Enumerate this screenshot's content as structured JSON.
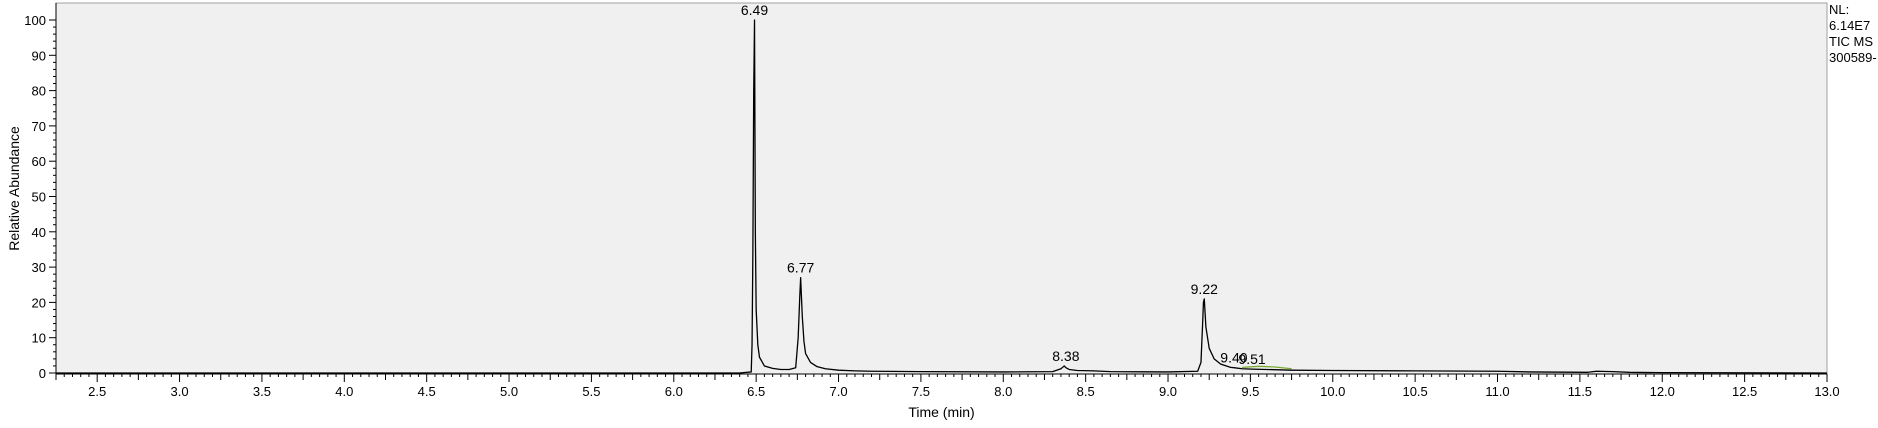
{
  "chart_data": {
    "type": "line",
    "title": "",
    "xlabel": "Time (min)",
    "ylabel": "Relative Abundance",
    "xlim": [
      2.25,
      13.0
    ],
    "ylim": [
      0,
      100
    ],
    "x_ticks": [
      2.5,
      3.0,
      3.5,
      4.0,
      4.5,
      5.0,
      5.5,
      6.0,
      6.5,
      7.0,
      7.5,
      8.0,
      8.5,
      9.0,
      9.5,
      10.0,
      10.5,
      11.0,
      11.5,
      12.0,
      12.5,
      13.0
    ],
    "x_tick_labels": [
      "2.5",
      "3.0",
      "3.5",
      "4.0",
      "4.5",
      "5.0",
      "5.5",
      "6.0",
      "6.5",
      "7.0",
      "7.5",
      "8.0",
      "8.5",
      "9.0",
      "9.5",
      "10.0",
      "10.5",
      "11.0",
      "11.5",
      "12.0",
      "12.5",
      "13.0"
    ],
    "y_ticks": [
      0,
      10,
      20,
      30,
      40,
      50,
      60,
      70,
      80,
      90,
      100
    ],
    "y_tick_labels": [
      "0",
      "10",
      "20",
      "30",
      "40",
      "50",
      "60",
      "70",
      "80",
      "90",
      "100"
    ],
    "grid": false,
    "series": [
      {
        "color": "#000000",
        "x": [
          2.25,
          6.4,
          6.47,
          6.475,
          6.48,
          6.485,
          6.49,
          6.495,
          6.5,
          6.51,
          6.52,
          6.55,
          6.6,
          6.65,
          6.7,
          6.74,
          6.755,
          6.765,
          6.77,
          6.78,
          6.79,
          6.8,
          6.83,
          6.87,
          6.92,
          7.0,
          7.1,
          7.2,
          7.5,
          8.0,
          8.3,
          8.35,
          8.37,
          8.38,
          8.4,
          8.45,
          8.55,
          8.65,
          9.0,
          9.18,
          9.2,
          9.21,
          9.215,
          9.22,
          9.23,
          9.25,
          9.28,
          9.32,
          9.38,
          9.4,
          9.45,
          9.51,
          9.6,
          9.75,
          10.0,
          10.5,
          11.0,
          11.2,
          11.55,
          11.6,
          11.7,
          11.8,
          12.0,
          13.0
        ],
        "values": [
          0.0,
          0.0,
          0.3,
          8.0,
          34.0,
          79.0,
          100.0,
          40.0,
          18.0,
          8.0,
          4.5,
          2.0,
          1.3,
          1.0,
          1.0,
          1.5,
          10.0,
          22.0,
          27.0,
          16.0,
          9.0,
          5.5,
          3.0,
          1.8,
          1.2,
          0.8,
          0.6,
          0.5,
          0.4,
          0.3,
          0.4,
          1.2,
          2.0,
          1.5,
          1.0,
          0.7,
          0.6,
          0.4,
          0.3,
          0.5,
          3.0,
          14.0,
          20.0,
          21.0,
          13.0,
          7.0,
          4.0,
          2.5,
          1.6,
          1.5,
          1.2,
          1.1,
          1.0,
          0.8,
          0.7,
          0.6,
          0.5,
          0.3,
          0.2,
          0.5,
          0.4,
          0.2,
          0.1,
          0.0
        ]
      },
      {
        "color": "#77aa33",
        "x": [
          9.45,
          9.55,
          9.65,
          9.75
        ],
        "values": [
          1.6,
          1.9,
          1.7,
          1.2
        ]
      }
    ],
    "annotations": [
      {
        "x": 6.49,
        "y": 100.0,
        "text": "6.49"
      },
      {
        "x": 6.77,
        "y": 27.0,
        "text": "6.77"
      },
      {
        "x": 8.38,
        "y": 2.0,
        "text": "8.38"
      },
      {
        "x": 9.22,
        "y": 21.0,
        "text": "9.22"
      },
      {
        "x": 9.4,
        "y": 1.5,
        "text": "9.40"
      },
      {
        "x": 9.51,
        "y": 1.1,
        "text": "9.51"
      }
    ]
  },
  "info": {
    "nl_label": "NL:",
    "nl_value": "6.14E7",
    "trace": "TIC  MS",
    "file": "300589-"
  }
}
